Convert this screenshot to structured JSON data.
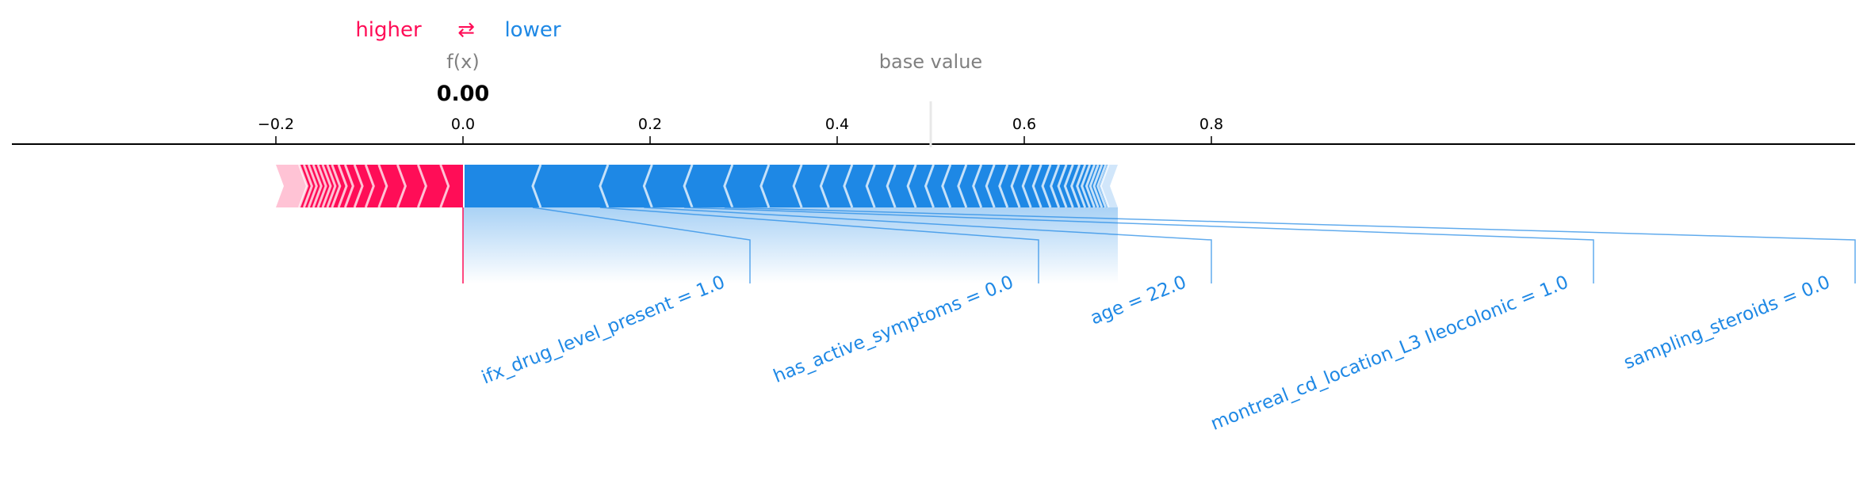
{
  "legend": {
    "higher": "higher",
    "arrows": "⇄",
    "lower": "lower"
  },
  "header": {
    "fx_label": "f(x)",
    "base_value_label": "base value"
  },
  "colors": {
    "positive": "#ff0d57",
    "positive_light": "#ffc3d5",
    "negative": "#1e88e5",
    "negative_light": "#d1e6fa",
    "base_line": "#e8e8e8"
  },
  "chart_data": {
    "type": "force",
    "output_value": 0.0,
    "output_value_label": "0.00",
    "base_value": 0.5,
    "xlim": [
      -0.2,
      0.8
    ],
    "x_ticks": [
      -0.2,
      0.0,
      0.2,
      0.4,
      0.6,
      0.8
    ],
    "tick_labels": [
      "−0.2",
      "0.0",
      "0.2",
      "0.4",
      "0.6",
      "0.8"
    ],
    "positive_range": [
      -0.2,
      0.0
    ],
    "negative_range": [
      0.0,
      0.7
    ],
    "positive_chevrons": [
      -0.175,
      -0.17,
      -0.165,
      -0.16,
      -0.155,
      -0.15,
      -0.145,
      -0.14,
      -0.133,
      -0.126,
      -0.116,
      -0.104,
      -0.09,
      -0.07,
      -0.048,
      -0.024
    ],
    "negative_chevrons": [
      0.083,
      0.155,
      0.202,
      0.245,
      0.288,
      0.327,
      0.362,
      0.391,
      0.416,
      0.44,
      0.462,
      0.484,
      0.503,
      0.521,
      0.538,
      0.554,
      0.568,
      0.582,
      0.595,
      0.607,
      0.618,
      0.628,
      0.637,
      0.645,
      0.652,
      0.659,
      0.665,
      0.67,
      0.675,
      0.679,
      0.683,
      0.687,
      0.69
    ],
    "features": [
      {
        "label": "ifx_drug_level_present = 1.0",
        "start": 0.0,
        "end": 0.083
      },
      {
        "label": "has_active_symptoms = 0.0",
        "start": 0.083,
        "end": 0.155
      },
      {
        "label": "age = 22.0",
        "start": 0.155,
        "end": 0.202
      },
      {
        "label": "montreal_cd_location_L3 Ileocolonic = 1.0",
        "start": 0.202,
        "end": 0.245
      },
      {
        "label": "sampling_steroids = 0.0",
        "start": 0.245,
        "end": 0.288
      }
    ]
  }
}
